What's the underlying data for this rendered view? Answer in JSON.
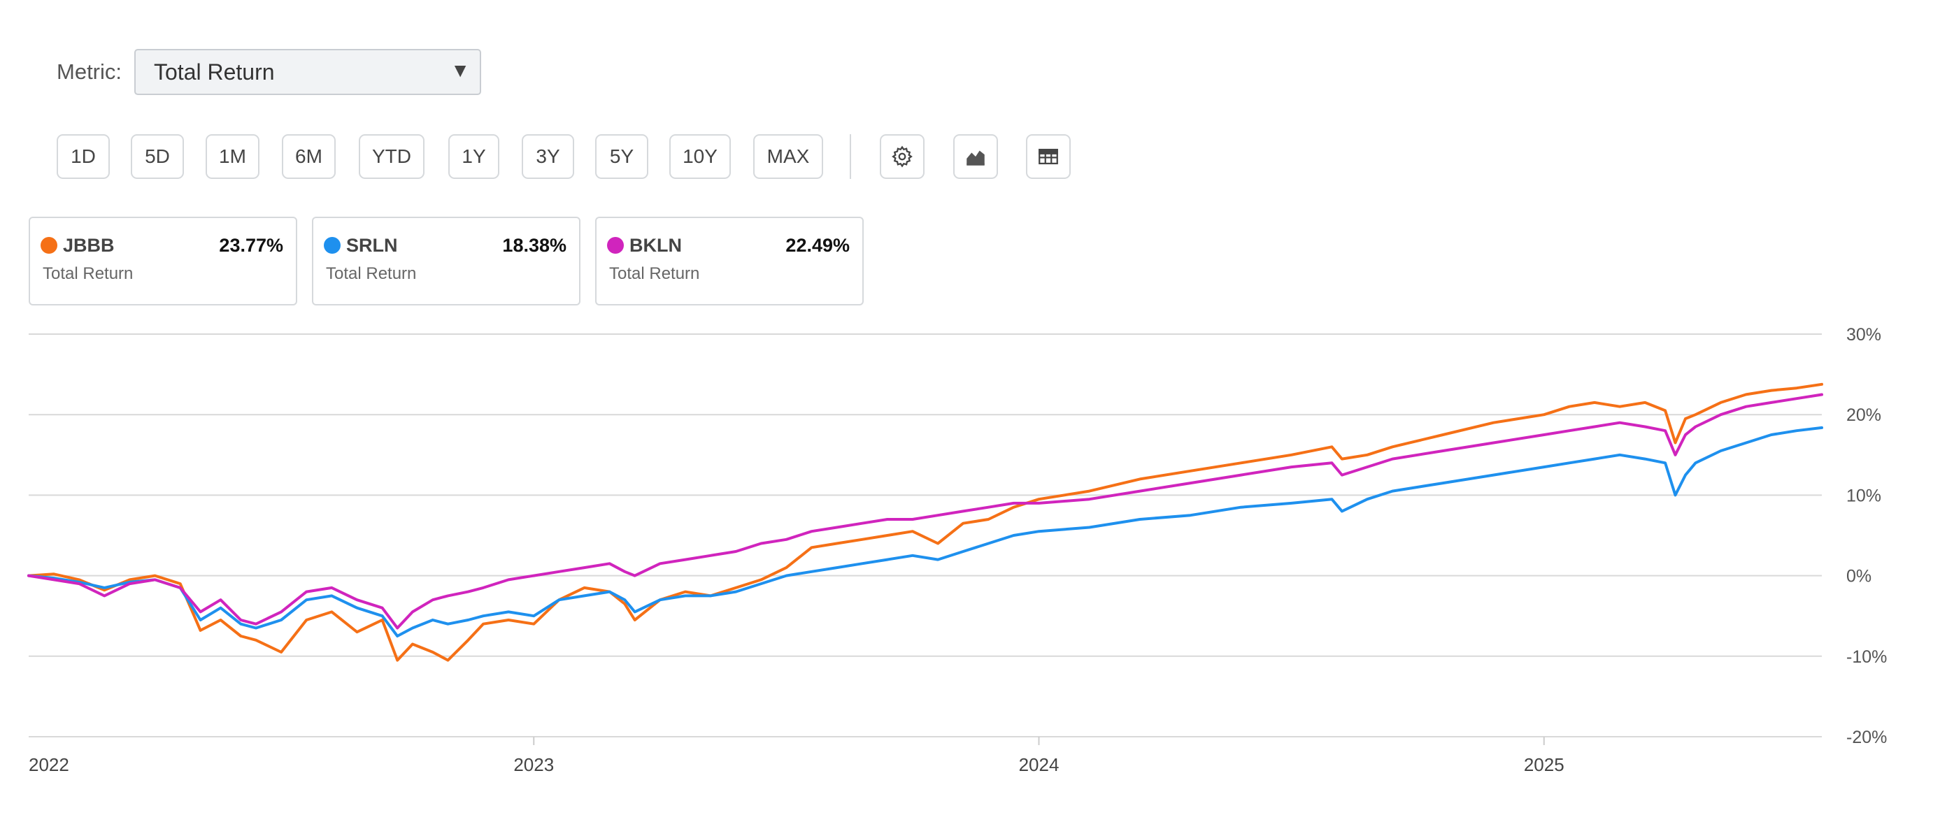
{
  "metric": {
    "label": "Metric:",
    "value": "Total Return"
  },
  "ranges": [
    "1D",
    "5D",
    "1M",
    "6M",
    "YTD",
    "1Y",
    "3Y",
    "5Y",
    "10Y",
    "MAX"
  ],
  "tools": [
    "gear-icon",
    "area-chart-icon",
    "table-icon"
  ],
  "legend": [
    {
      "ticker": "JBBB",
      "value": "23.77%",
      "metric": "Total Return",
      "color": "#f57016"
    },
    {
      "ticker": "SRLN",
      "value": "18.38%",
      "metric": "Total Return",
      "color": "#1e90ee"
    },
    {
      "ticker": "BKLN",
      "value": "22.49%",
      "metric": "Total Return",
      "color": "#d024bd"
    }
  ],
  "chart_data": {
    "type": "line",
    "x_unit": "year",
    "xlim": [
      2022.0,
      2025.55
    ],
    "ylim": [
      -20,
      30
    ],
    "y_ticks": [
      30,
      20,
      10,
      0,
      -10,
      -20
    ],
    "y_tick_labels": [
      "30%",
      "20%",
      "10%",
      "0%",
      "-10%",
      "-20%"
    ],
    "x_ticks": [
      2022,
      2023,
      2024,
      2025
    ],
    "x_tick_labels": [
      "2022",
      "2023",
      "2024",
      "2025"
    ],
    "grid": true,
    "series": [
      {
        "name": "JBBB",
        "color": "#f57016",
        "x": [
          2022.0,
          2022.05,
          2022.1,
          2022.15,
          2022.2,
          2022.25,
          2022.3,
          2022.34,
          2022.38,
          2022.42,
          2022.45,
          2022.5,
          2022.55,
          2022.6,
          2022.65,
          2022.7,
          2022.73,
          2022.76,
          2022.8,
          2022.83,
          2022.87,
          2022.9,
          2022.95,
          2023.0,
          2023.05,
          2023.1,
          2023.15,
          2023.18,
          2023.2,
          2023.25,
          2023.3,
          2023.35,
          2023.4,
          2023.45,
          2023.5,
          2023.55,
          2023.6,
          2023.65,
          2023.7,
          2023.75,
          2023.8,
          2023.85,
          2023.9,
          2023.95,
          2024.0,
          2024.1,
          2024.2,
          2024.3,
          2024.4,
          2024.5,
          2024.58,
          2024.6,
          2024.65,
          2024.7,
          2024.8,
          2024.9,
          2025.0,
          2025.05,
          2025.1,
          2025.15,
          2025.2,
          2025.24,
          2025.26,
          2025.28,
          2025.3,
          2025.35,
          2025.4,
          2025.45,
          2025.5,
          2025.55
        ],
        "values": [
          0,
          0.2,
          -0.5,
          -1.8,
          -0.5,
          0,
          -1.0,
          -6.8,
          -5.5,
          -7.5,
          -8.0,
          -9.5,
          -5.5,
          -4.5,
          -7.0,
          -5.5,
          -10.5,
          -8.5,
          -9.5,
          -10.5,
          -8.0,
          -6.0,
          -5.5,
          -6.0,
          -3.0,
          -1.5,
          -2.0,
          -3.5,
          -5.5,
          -3.0,
          -2.0,
          -2.5,
          -1.5,
          -0.5,
          1.0,
          3.5,
          4.0,
          4.5,
          5.0,
          5.5,
          4.0,
          6.5,
          7.0,
          8.5,
          9.5,
          10.5,
          12.0,
          13.0,
          14.0,
          15.0,
          16.0,
          14.5,
          15.0,
          16.0,
          17.5,
          19.0,
          20.0,
          21.0,
          21.5,
          21.0,
          21.5,
          20.5,
          16.5,
          19.5,
          20.0,
          21.5,
          22.5,
          23.0,
          23.3,
          23.77
        ]
      },
      {
        "name": "SRLN",
        "color": "#1e90ee",
        "x": [
          2022.0,
          2022.05,
          2022.1,
          2022.15,
          2022.2,
          2022.25,
          2022.3,
          2022.34,
          2022.38,
          2022.42,
          2022.45,
          2022.5,
          2022.55,
          2022.6,
          2022.65,
          2022.7,
          2022.73,
          2022.76,
          2022.8,
          2022.83,
          2022.87,
          2022.9,
          2022.95,
          2023.0,
          2023.05,
          2023.1,
          2023.15,
          2023.18,
          2023.2,
          2023.25,
          2023.3,
          2023.35,
          2023.4,
          2023.45,
          2023.5,
          2023.55,
          2023.6,
          2023.65,
          2023.7,
          2023.75,
          2023.8,
          2023.85,
          2023.9,
          2023.95,
          2024.0,
          2024.1,
          2024.2,
          2024.3,
          2024.4,
          2024.5,
          2024.58,
          2024.6,
          2024.65,
          2024.7,
          2024.8,
          2024.9,
          2025.0,
          2025.05,
          2025.1,
          2025.15,
          2025.2,
          2025.24,
          2025.26,
          2025.28,
          2025.3,
          2025.35,
          2025.4,
          2025.45,
          2025.5,
          2025.55
        ],
        "values": [
          0,
          -0.3,
          -0.8,
          -1.5,
          -0.8,
          -0.5,
          -1.5,
          -5.5,
          -4.0,
          -6.0,
          -6.5,
          -5.5,
          -3.0,
          -2.5,
          -4.0,
          -5.0,
          -7.5,
          -6.5,
          -5.5,
          -6.0,
          -5.5,
          -5.0,
          -4.5,
          -5.0,
          -3.0,
          -2.5,
          -2.0,
          -3.0,
          -4.5,
          -3.0,
          -2.5,
          -2.5,
          -2.0,
          -1.0,
          0,
          0.5,
          1.0,
          1.5,
          2.0,
          2.5,
          2.0,
          3.0,
          4.0,
          5.0,
          5.5,
          6.0,
          7.0,
          7.5,
          8.5,
          9.0,
          9.5,
          8.0,
          9.5,
          10.5,
          11.5,
          12.5,
          13.5,
          14.0,
          14.5,
          15.0,
          14.5,
          14.0,
          10.0,
          12.5,
          14.0,
          15.5,
          16.5,
          17.5,
          18.0,
          18.38
        ]
      },
      {
        "name": "BKLN",
        "color": "#d024bd",
        "x": [
          2022.0,
          2022.05,
          2022.1,
          2022.15,
          2022.2,
          2022.25,
          2022.3,
          2022.34,
          2022.38,
          2022.42,
          2022.45,
          2022.5,
          2022.55,
          2022.6,
          2022.65,
          2022.7,
          2022.73,
          2022.76,
          2022.8,
          2022.83,
          2022.87,
          2022.9,
          2022.95,
          2023.0,
          2023.05,
          2023.1,
          2023.15,
          2023.18,
          2023.2,
          2023.25,
          2023.3,
          2023.35,
          2023.4,
          2023.45,
          2023.5,
          2023.55,
          2023.6,
          2023.65,
          2023.7,
          2023.75,
          2023.8,
          2023.85,
          2023.9,
          2023.95,
          2024.0,
          2024.1,
          2024.2,
          2024.3,
          2024.4,
          2024.5,
          2024.58,
          2024.6,
          2024.65,
          2024.7,
          2024.8,
          2024.9,
          2025.0,
          2025.05,
          2025.1,
          2025.15,
          2025.2,
          2025.24,
          2025.26,
          2025.28,
          2025.3,
          2025.35,
          2025.4,
          2025.45,
          2025.5,
          2025.55
        ],
        "values": [
          0,
          -0.5,
          -1.0,
          -2.5,
          -1.0,
          -0.5,
          -1.5,
          -4.5,
          -3.0,
          -5.5,
          -6.0,
          -4.5,
          -2.0,
          -1.5,
          -3.0,
          -4.0,
          -6.5,
          -4.5,
          -3.0,
          -2.5,
          -2.0,
          -1.5,
          -0.5,
          0,
          0.5,
          1.0,
          1.5,
          0.5,
          0,
          1.5,
          2.0,
          2.5,
          3.0,
          4.0,
          4.5,
          5.5,
          6.0,
          6.5,
          7.0,
          7.0,
          7.5,
          8.0,
          8.5,
          9.0,
          9.0,
          9.5,
          10.5,
          11.5,
          12.5,
          13.5,
          14.0,
          12.5,
          13.5,
          14.5,
          15.5,
          16.5,
          17.5,
          18.0,
          18.5,
          19.0,
          18.5,
          18.0,
          15.0,
          17.5,
          18.5,
          20.0,
          21.0,
          21.5,
          22.0,
          22.49
        ]
      }
    ]
  }
}
